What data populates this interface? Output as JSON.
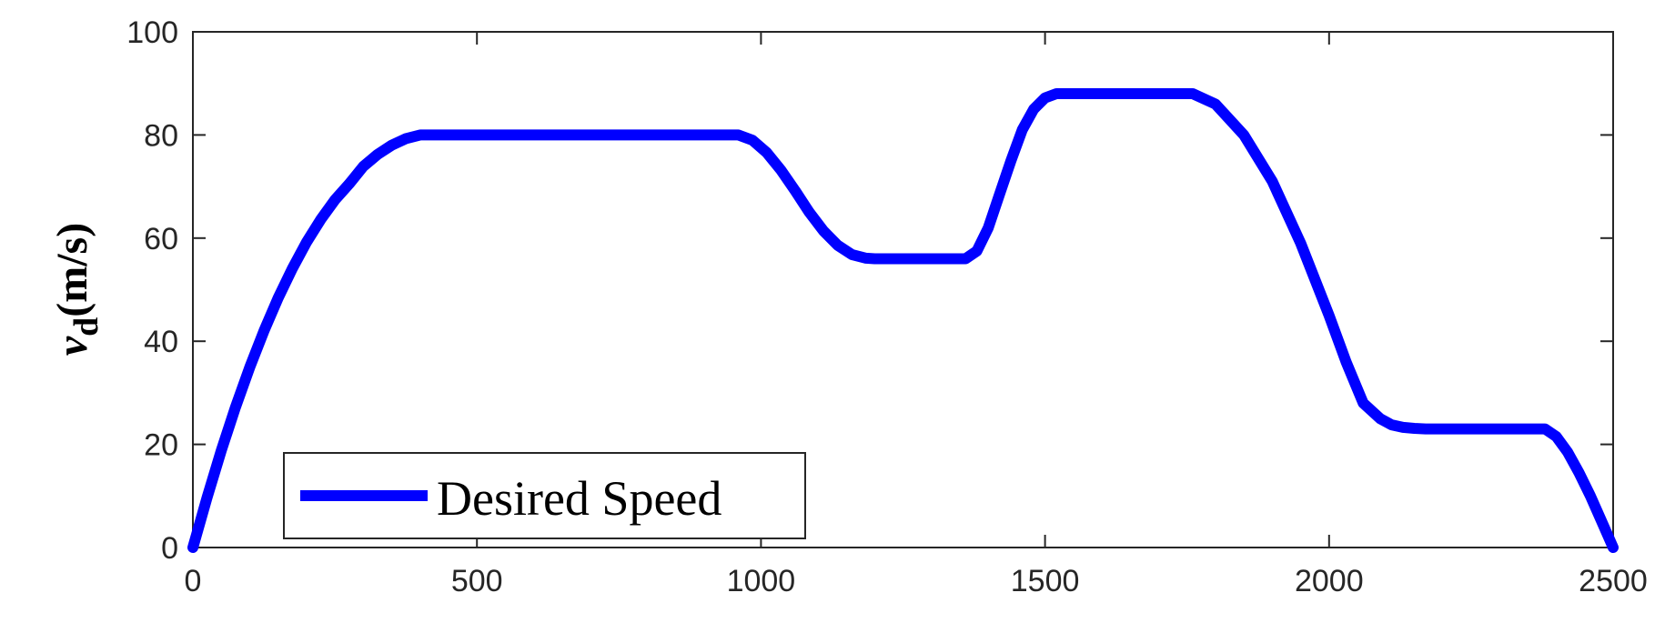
{
  "chart_data": {
    "type": "line",
    "title": "",
    "xlabel": "",
    "ylabel": {
      "main": "v",
      "subscript": "d",
      "unit": "(m/s)"
    },
    "xlim": [
      0,
      2500
    ],
    "ylim": [
      0,
      100
    ],
    "xticks": [
      0,
      500,
      1000,
      1500,
      2000,
      2500
    ],
    "yticks": [
      0,
      20,
      40,
      60,
      80,
      100
    ],
    "xtick_labels": [
      "0",
      "500",
      "1000",
      "1500",
      "2000",
      "2500"
    ],
    "ytick_labels": [
      "0",
      "20",
      "40",
      "60",
      "80",
      "100"
    ],
    "grid": false,
    "legend": {
      "position": "bottom-left",
      "boxed": true
    },
    "series": [
      {
        "name": "Desired Speed",
        "color": "#0000ff",
        "x": [
          0,
          25,
          50,
          75,
          100,
          125,
          150,
          175,
          200,
          225,
          250,
          275,
          300,
          325,
          350,
          375,
          400,
          500,
          600,
          700,
          800,
          900,
          960,
          985,
          1010,
          1035,
          1060,
          1085,
          1110,
          1135,
          1160,
          1185,
          1200,
          1300,
          1360,
          1380,
          1400,
          1420,
          1440,
          1460,
          1480,
          1500,
          1520,
          1540,
          1600,
          1700,
          1760,
          1800,
          1850,
          1900,
          1950,
          2000,
          2030,
          2060,
          2090,
          2110,
          2130,
          2150,
          2170,
          2250,
          2300,
          2380,
          2400,
          2420,
          2440,
          2460,
          2480,
          2500
        ],
        "y": [
          0,
          9.7,
          18.8,
          27.2,
          34.9,
          42.0,
          48.4,
          54.1,
          59.2,
          63.6,
          67.4,
          70.5,
          73.9,
          76.2,
          78.0,
          79.3,
          80,
          80,
          80,
          80,
          80,
          80,
          80,
          79.0,
          76.6,
          73.2,
          69.2,
          65.0,
          61.4,
          58.6,
          56.8,
          56.1,
          56,
          56,
          56,
          57.5,
          62.0,
          68.5,
          75.0,
          81.0,
          85.0,
          87.2,
          88.0,
          88,
          88,
          88,
          88,
          86.0,
          80.0,
          71.0,
          59.0,
          45.0,
          36.0,
          28.0,
          25.0,
          23.8,
          23.3,
          23.1,
          23,
          23,
          23,
          23,
          21.5,
          18.5,
          14.5,
          10.0,
          5.0,
          0
        ]
      }
    ]
  }
}
